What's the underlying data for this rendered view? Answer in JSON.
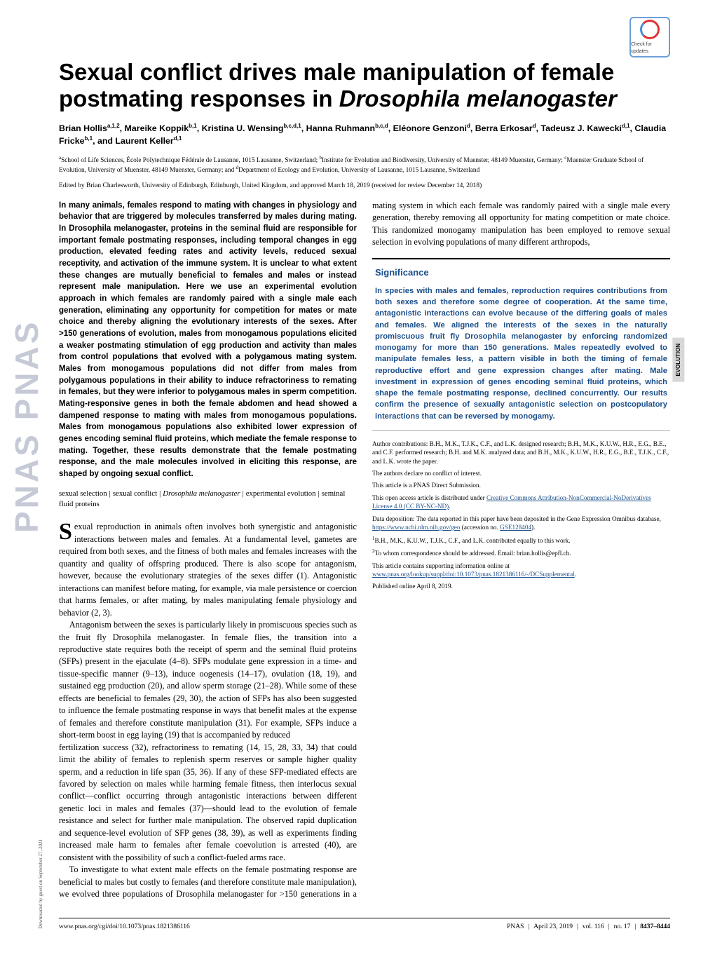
{
  "journal_spine": "PNAS  PNAS",
  "check_updates_label": "Check for updates",
  "title_main": "Sexual conflict drives male manipulation of female postmating responses in ",
  "title_species": "Drosophila melanogaster",
  "authors_html": "Brian Hollis<sup>a,1,2</sup>, Mareike Koppik<sup>b,1</sup>, Kristina U. Wensing<sup>b,c,d,1</sup>, Hanna Ruhmann<sup>b,c,d</sup>, Eléonore Genzoni<sup>d</sup>, Berra Erkosar<sup>d</sup>, Tadeusz J. Kawecki<sup>d,1</sup>, Claudia Fricke<sup>b,1</sup>, and Laurent Keller<sup>d,1</sup>",
  "affiliations_html": "<sup>a</sup>School of Life Sciences, École Polytechnique Fédérale de Lausanne, 1015 Lausanne, Switzerland; <sup>b</sup>Institute for Evolution and Biodiversity, University of Muenster, 48149 Muenster, Germany; <sup>c</sup>Muenster Graduate School of Evolution, University of Muenster, 48149 Muenster, Germany; and <sup>d</sup>Department of Ecology and Evolution, University of Lausanne, 1015 Lausanne, Switzerland",
  "edited_by": "Edited by Brian Charlesworth, University of Edinburgh, Edinburgh, United Kingdom, and approved March 18, 2019 (received for review December 14, 2018)",
  "abstract": "In many animals, females respond to mating with changes in physiology and behavior that are triggered by molecules transferred by males during mating. In Drosophila melanogaster, proteins in the seminal fluid are responsible for important female postmating responses, including temporal changes in egg production, elevated feeding rates and activity levels, reduced sexual receptivity, and activation of the immune system. It is unclear to what extent these changes are mutually beneficial to females and males or instead represent male manipulation. Here we use an experimental evolution approach in which females are randomly paired with a single male each generation, eliminating any opportunity for competition for mates or mate choice and thereby aligning the evolutionary interests of the sexes. After >150 generations of evolution, males from monogamous populations elicited a weaker postmating stimulation of egg production and activity than males from control populations that evolved with a polygamous mating system. Males from monogamous populations did not differ from males from polygamous populations in their ability to induce refractoriness to remating in females, but they were inferior to polygamous males in sperm competition. Mating-responsive genes in both the female abdomen and head showed a dampened response to mating with males from monogamous populations. Males from monogamous populations also exhibited lower expression of genes encoding seminal fluid proteins, which mediate the female response to mating. Together, these results demonstrate that the female postmating response, and the male molecules involved in eliciting this response, are shaped by ongoing sexual conflict.",
  "keywords": [
    "sexual selection",
    "sexual conflict",
    "Drosophila melanogaster",
    "experimental evolution",
    "seminal fluid proteins"
  ],
  "body_p1_dropcap": "S",
  "body_p1": "exual reproduction in animals often involves both synergistic and antagonistic interactions between males and females. At a fundamental level, gametes are required from both sexes, and the fitness of both males and females increases with the quantity and quality of offspring produced. There is also scope for antagonism, however, because the evolutionary strategies of the sexes differ (1). Antagonistic interactions can manifest before mating, for example, via male persistence or coercion that harms females, or after mating, by males manipulating female physiology and behavior (2, 3).",
  "body_p2": "Antagonism between the sexes is particularly likely in promiscuous species such as the fruit fly Drosophila melanogaster. In female flies, the transition into a reproductive state requires both the receipt of sperm and the seminal fluid proteins (SFPs) present in the ejaculate (4–8). SFPs modulate gene expression in a time- and tissue-specific manner (9–13), induce oogenesis (14–17), ovulation (18, 19), and sustained egg production (20), and allow sperm storage (21–28). While some of these effects are beneficial to females (29, 30), the action of SFPs has also been suggested to influence the female postmating response in ways that benefit males at the expense of females and therefore constitute manipulation (31). For example, SFPs induce a short-term boost in egg laying (19) that is accompanied by reduced",
  "body_p3": "fertilization success (32), refractoriness to remating (14, 15, 28, 33, 34) that could limit the ability of females to replenish sperm reserves or sample higher quality sperm, and a reduction in life span (35, 36). If any of these SFP-mediated effects are favored by selection on males while harming female fitness, then interlocus sexual conflict—conflict occurring through antagonistic interactions between different genetic loci in males and females (37)—should lead to the evolution of female resistance and select for further male manipulation. The observed rapid duplication and sequence-level evolution of SFP genes (38, 39), as well as experiments finding increased male harm to females after female coevolution is arrested (40), are consistent with the possibility of such a conflict-fueled arms race.",
  "body_p4": "To investigate to what extent male effects on the female postmating response are beneficial to males but costly to females (and therefore constitute male manipulation), we evolved three populations of Drosophila melanogaster for >150 generations in a mating system in which each female was randomly paired with a single male every generation, thereby removing all opportunity for mating competition or mate choice. This randomized monogamy manipulation has been employed to remove sexual selection in evolving populations of many different arthropods,",
  "significance_heading": "Significance",
  "significance_text": "In species with males and females, reproduction requires contributions from both sexes and therefore some degree of cooperation. At the same time, antagonistic interactions can evolve because of the differing goals of males and females. We aligned the interests of the sexes in the naturally promiscuous fruit fly Drosophila melanogaster by enforcing randomized monogamy for more than 150 generations. Males repeatedly evolved to manipulate females less, a pattern visible in both the timing of female reproductive effort and gene expression changes after mating. Male investment in expression of genes encoding seminal fluid proteins, which shape the female postmating response, declined concurrently. Our results confirm the presence of sexually antagonistic selection on postcopulatory interactions that can be reversed by monogamy.",
  "fine_author_contrib": "Author contributions: B.H., M.K., T.J.K., C.F., and L.K. designed research; B.H., M.K., K.U.W., H.R., E.G., B.E., and C.F. performed research; B.H. and M.K. analyzed data; and B.H., M.K., K.U.W., H.R., E.G., B.E., T.J.K., C.F., and L.K. wrote the paper.",
  "fine_conflict": "The authors declare no conflict of interest.",
  "fine_submission": "This article is a PNAS Direct Submission.",
  "fine_license_pre": "This open access article is distributed under ",
  "fine_license_link": "Creative Commons Attribution-NonCommercial-NoDerivatives License 4.0 (CC BY-NC-ND)",
  "fine_license_post": ".",
  "fine_data_pre": "Data deposition: The data reported in this paper have been deposited in the Gene Expression Omnibus database, ",
  "fine_data_link1": "https://www.ncbi.nlm.nih.gov/geo",
  "fine_data_mid": " (accession no. ",
  "fine_data_link2": "GSE128404",
  "fine_data_post": ").",
  "fine_note1": "<sup>1</sup>B.H., M.K., K.U.W., T.J.K., C.F., and L.K. contributed equally to this work.",
  "fine_note2": "<sup>2</sup>To whom correspondence should be addressed. Email: brian.hollis@epfl.ch.",
  "fine_si_pre": "This article contains supporting information online at ",
  "fine_si_link": "www.pnas.org/lookup/suppl/doi:10.1073/pnas.1821386116/-/DCSupplemental",
  "fine_si_post": ".",
  "fine_published": "Published online April 8, 2019.",
  "footer_doi": "www.pnas.org/cgi/doi/10.1073/pnas.1821386116",
  "footer_journal": "PNAS",
  "footer_date": "April 23, 2019",
  "footer_vol": "vol. 116",
  "footer_no": "no. 17",
  "footer_pages": "8437–8444",
  "section_tag": "EVOLUTION",
  "download_note": "Downloaded by guest on September 27, 2021"
}
